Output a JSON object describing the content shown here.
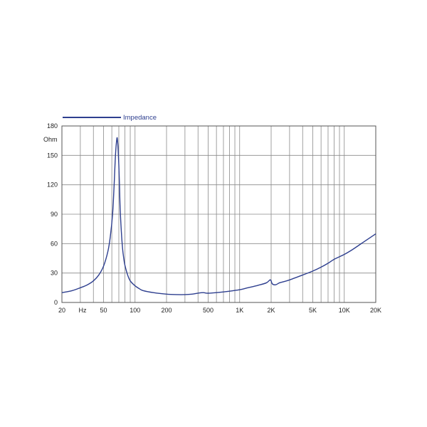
{
  "chart_data": {
    "type": "line",
    "title": "",
    "xlabel": "Hz",
    "ylabel": "Ohm",
    "x_scale": "log",
    "xlim": [
      20,
      20000
    ],
    "ylim": [
      0,
      180
    ],
    "y_ticks": [
      0,
      30,
      60,
      90,
      120,
      150,
      180
    ],
    "x_tick_labels": [
      {
        "value": 20,
        "label": "20"
      },
      {
        "value": 50,
        "label": "50"
      },
      {
        "value": 100,
        "label": "100"
      },
      {
        "value": 200,
        "label": "200"
      },
      {
        "value": 500,
        "label": "500"
      },
      {
        "value": 1000,
        "label": "1K"
      },
      {
        "value": 2000,
        "label": "2K"
      },
      {
        "value": 5000,
        "label": "5K"
      },
      {
        "value": 10000,
        "label": "10K"
      },
      {
        "value": 20000,
        "label": "20K"
      }
    ],
    "grid": true,
    "legend_position": "top-left",
    "series": [
      {
        "name": "Impedance",
        "color": "#2e3f8f",
        "x": [
          20,
          25,
          30,
          35,
          40,
          45,
          50,
          55,
          58,
          61,
          63,
          65,
          67,
          68,
          69,
          70,
          71,
          72,
          74,
          76,
          78,
          80,
          85,
          90,
          100,
          110,
          120,
          150,
          200,
          250,
          300,
          350,
          400,
          450,
          480,
          520,
          600,
          800,
          1000,
          1200,
          1500,
          1800,
          1950,
          2000,
          2050,
          2200,
          2400,
          2600,
          3000,
          4000,
          5000,
          6000,
          7000,
          8000,
          10000,
          12000,
          15000,
          20000
        ],
        "y": [
          10,
          12,
          15,
          18,
          22,
          28,
          37,
          52,
          67,
          90,
          118,
          150,
          167,
          165,
          155,
          140,
          120,
          97,
          72,
          55,
          45,
          38,
          28,
          22,
          17,
          14,
          12,
          10,
          8.5,
          8,
          8,
          8.5,
          9.5,
          10,
          9.5,
          9.5,
          10,
          11.5,
          13,
          15,
          17.5,
          20,
          23,
          22,
          19,
          18,
          20,
          21,
          23,
          28,
          32,
          36,
          40,
          44,
          49,
          54,
          61,
          70
        ]
      }
    ]
  }
}
